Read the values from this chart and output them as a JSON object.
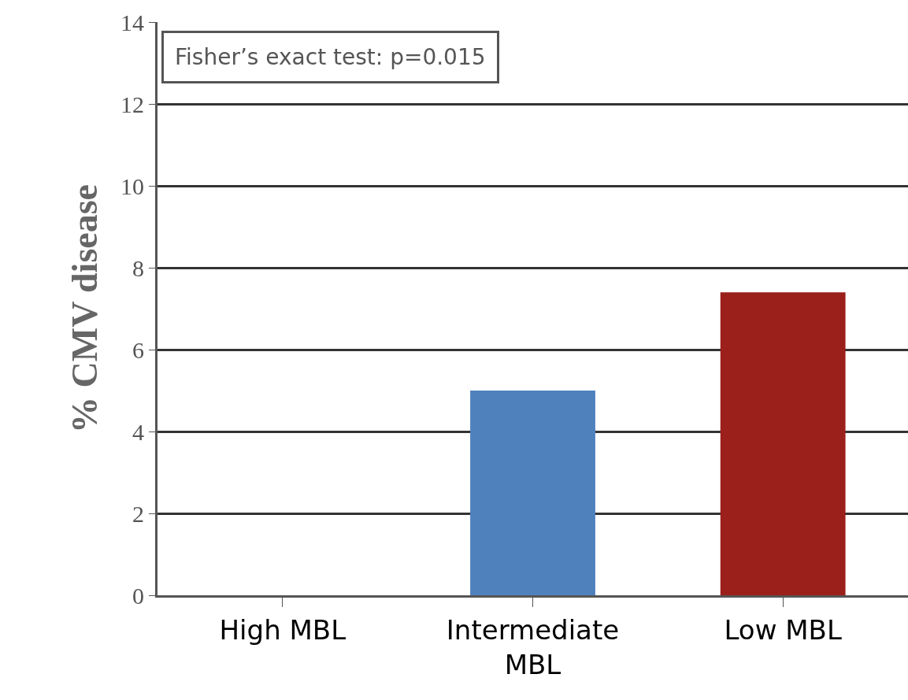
{
  "chart_data": {
    "type": "bar",
    "categories": [
      "High MBL",
      "Intermediate MBL",
      "Low MBL"
    ],
    "values": [
      0,
      5.0,
      7.4
    ],
    "colors": [
      "#4f81bd",
      "#4f81bd",
      "#9b1f1a"
    ],
    "ylabel": "% CMV disease",
    "ylim": [
      0,
      14
    ],
    "yticks": [
      0,
      2,
      4,
      6,
      8,
      10,
      12,
      14
    ],
    "grid": "y",
    "annotations": [
      "Fisher’s exact test: p=0.015"
    ]
  }
}
